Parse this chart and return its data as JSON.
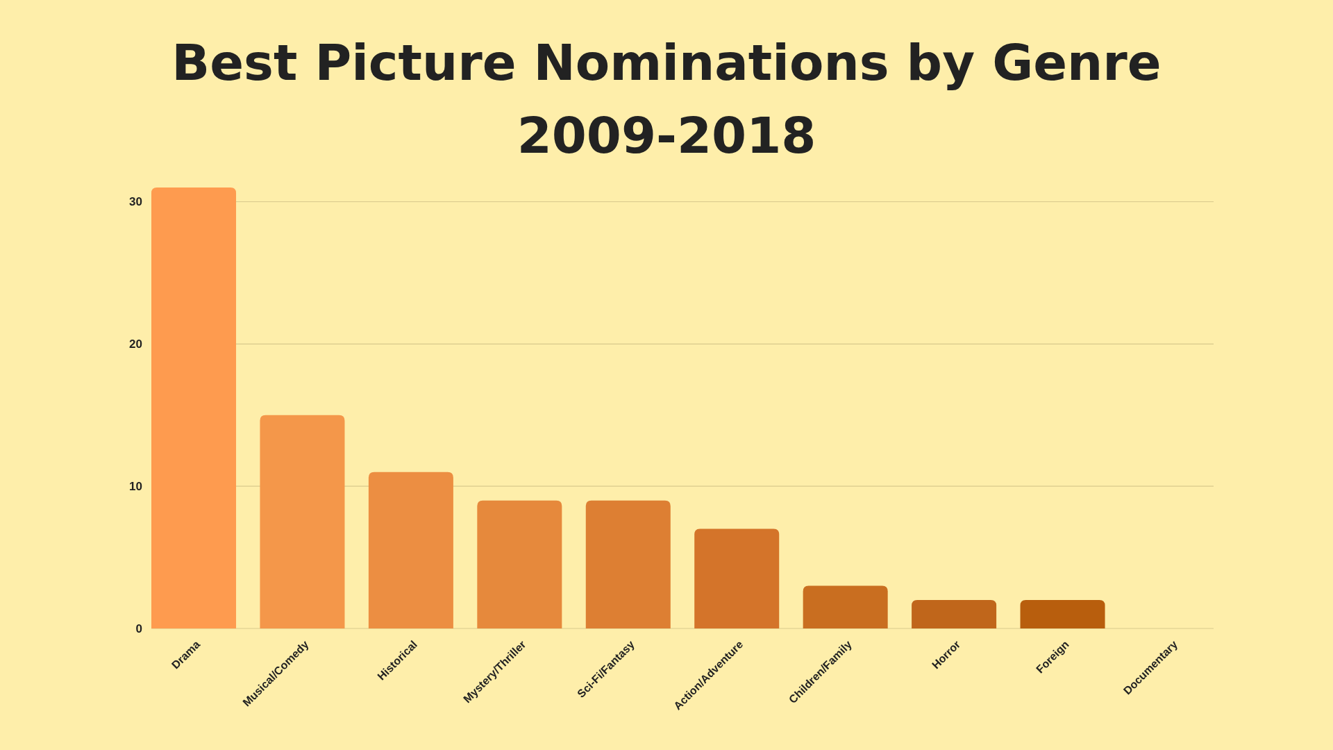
{
  "chart_data": {
    "type": "bar",
    "title": "Best Picture Nominations by Genre 2009-2018",
    "categories": [
      "Drama",
      "Musical/Comedy",
      "Historical",
      "Mystery/Thriller",
      "Sci-Fi/Fantasy",
      "Action/Adventure",
      "Children/Family",
      "Horror",
      "Foreign",
      "Documentary"
    ],
    "values": [
      31,
      15,
      11,
      9,
      9,
      7,
      3,
      2,
      2,
      0
    ],
    "colors": [
      "#fe9b4f",
      "#f4974a",
      "#ec8e42",
      "#e6893c",
      "#dd7f33",
      "#d4742a",
      "#c96e20",
      "#c0661b",
      "#b85e0d",
      "#b05a0a"
    ],
    "ylim": [
      0,
      31
    ],
    "yticks": [
      0,
      10,
      20,
      30
    ],
    "grid": "y"
  }
}
